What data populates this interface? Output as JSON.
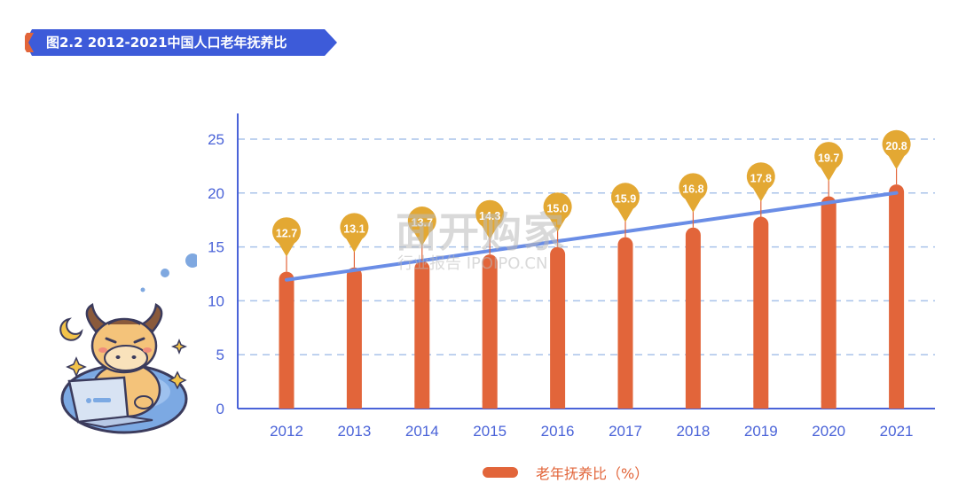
{
  "title": "图2.2  2012-2021中国人口老年抚养比",
  "watermark": {
    "main": "面开购家",
    "sub": "行业报告 IPOIPO.CN"
  },
  "legend": {
    "label": "老年抚养比（%）"
  },
  "colors": {
    "bar": "#E2653A",
    "trend": "#6A8DE6",
    "marker": "#E3A833",
    "axis": "#4A63D8",
    "grid": "#A9C3EA",
    "banner": "#3D5BD9"
  },
  "chart_data": {
    "type": "bar",
    "categories": [
      "2012",
      "2013",
      "2014",
      "2015",
      "2016",
      "2017",
      "2018",
      "2019",
      "2020",
      "2021"
    ],
    "series": [
      {
        "name": "老年抚养比（%）",
        "values": [
          12.7,
          13.1,
          13.7,
          14.3,
          15.0,
          15.9,
          16.8,
          17.8,
          19.7,
          20.8
        ]
      }
    ],
    "data_labels": [
      "12.7",
      "13.1",
      "13.7",
      "14.3",
      "15.0",
      "15.9",
      "16.8",
      "17.8",
      "19.7",
      "20.8"
    ],
    "trendline": {
      "type": "linear"
    },
    "ylim": [
      0,
      25
    ],
    "yticks": [
      "0",
      "5",
      "10",
      "15",
      "20",
      "25"
    ],
    "grid": true,
    "legend_position": "bottom-center"
  }
}
